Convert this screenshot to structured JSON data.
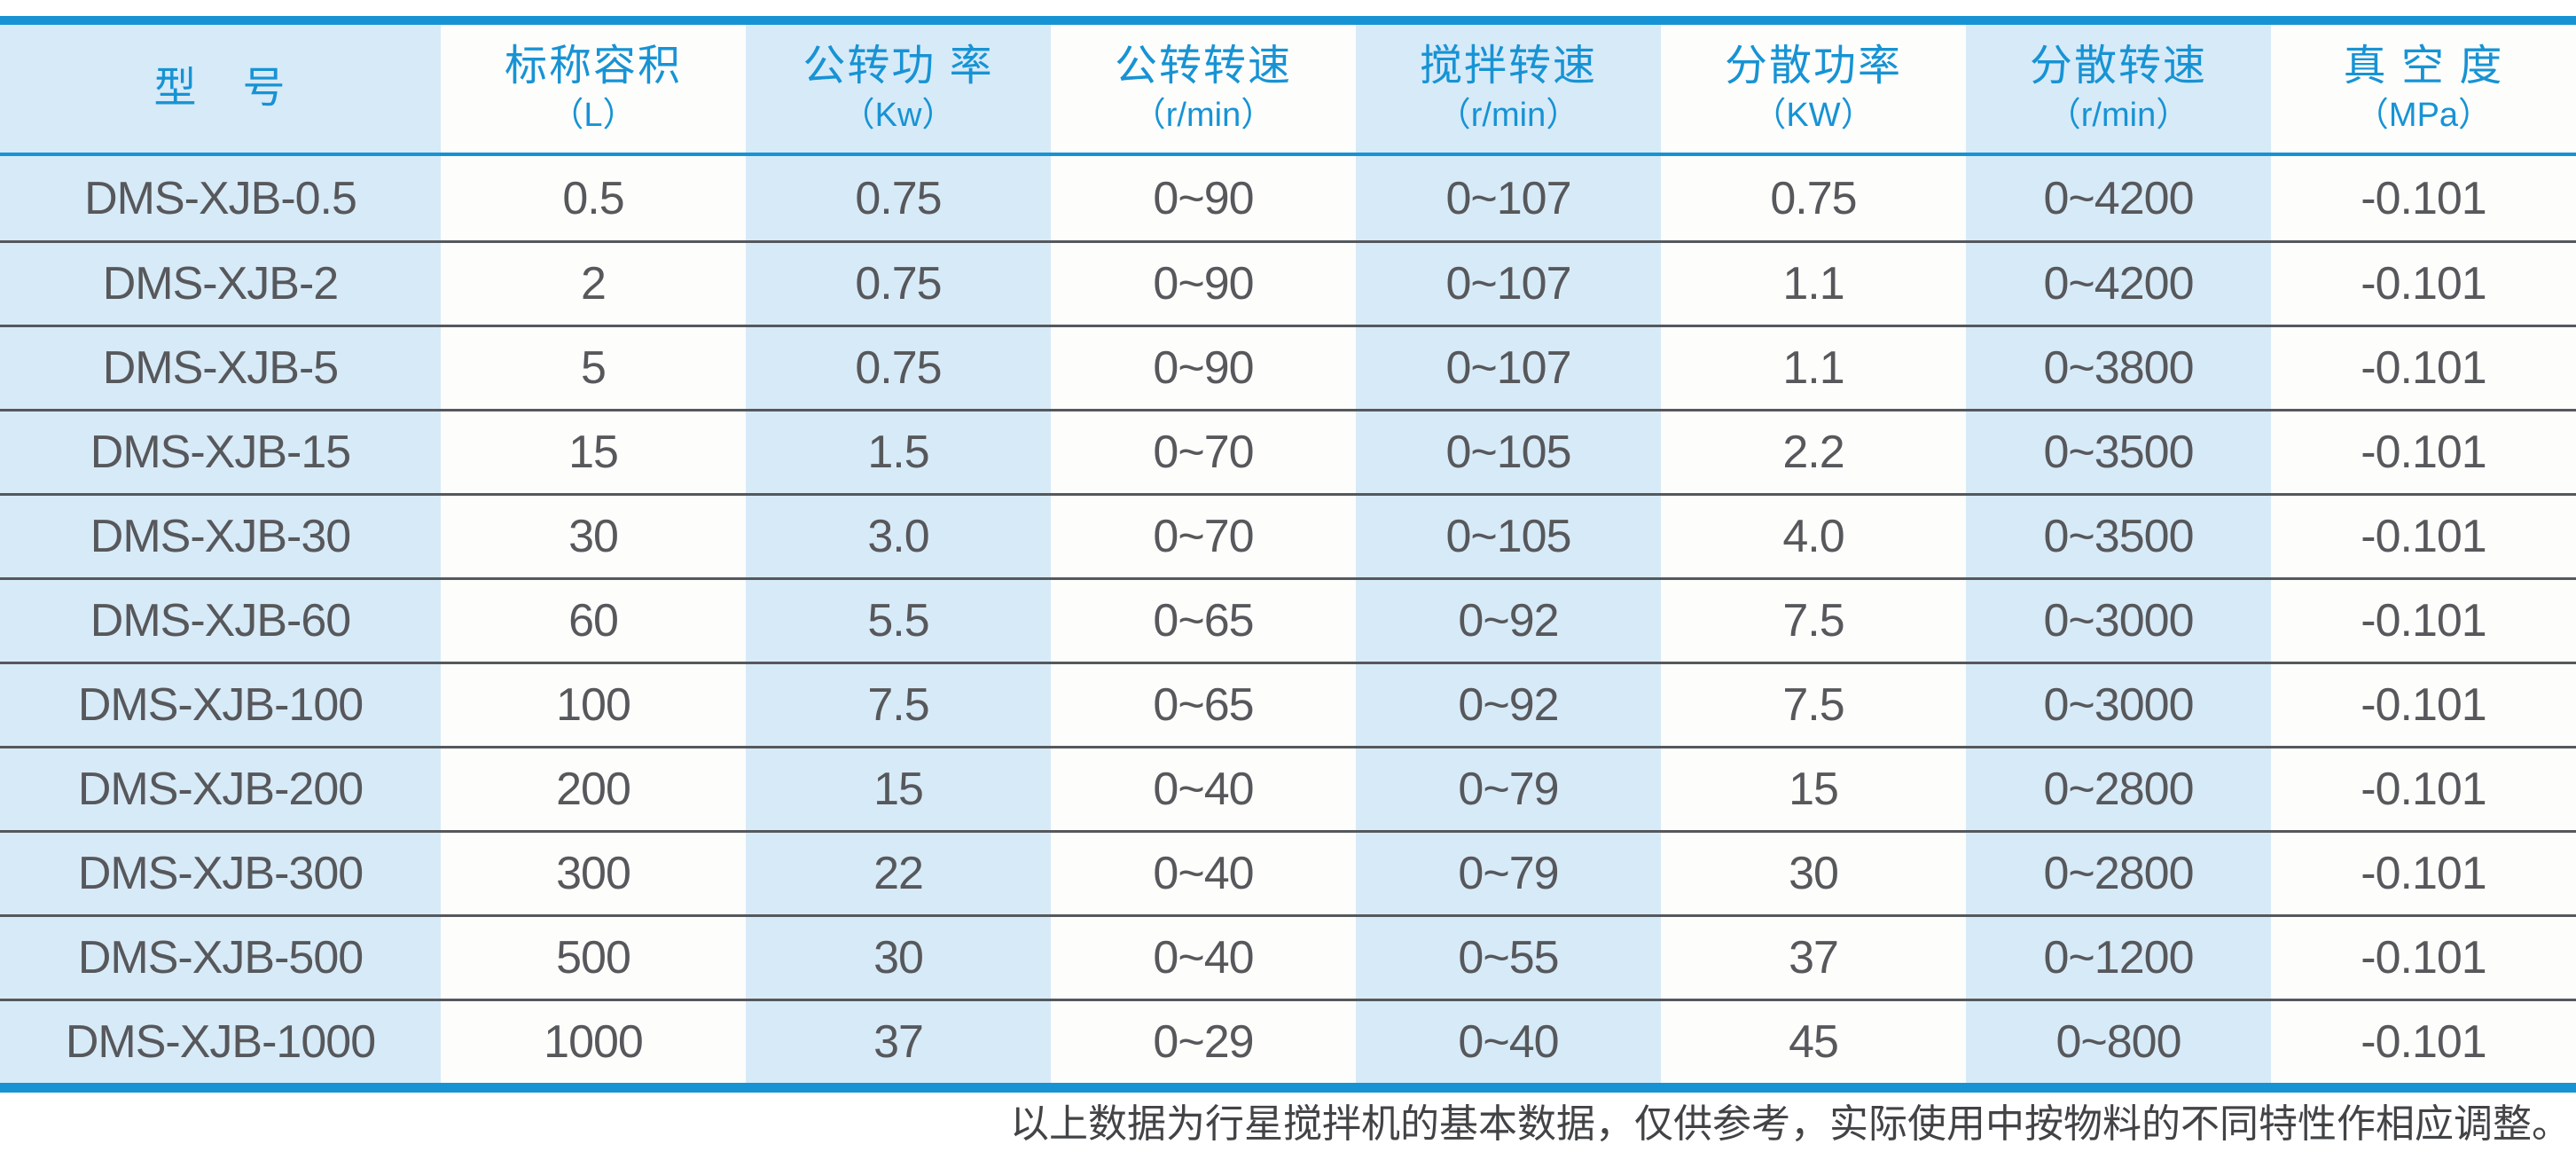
{
  "colors": {
    "accent": "#1793d4",
    "light_cell": "#d7eaf8",
    "data_text": "#57585b",
    "row_line": "#55585c"
  },
  "table": {
    "headers": [
      {
        "title": "型　号",
        "unit": ""
      },
      {
        "title": "标称容积",
        "unit": "（L）"
      },
      {
        "title": "公转功 率",
        "unit": "（Kw）"
      },
      {
        "title": "公转转速",
        "unit": "（r/min）"
      },
      {
        "title": "搅拌转速",
        "unit": "（r/min）"
      },
      {
        "title": "分散功率",
        "unit": "（KW）"
      },
      {
        "title": "分散转速",
        "unit": "（r/min）"
      },
      {
        "title": "真 空 度",
        "unit": "（MPa）"
      }
    ],
    "rows": [
      [
        "DMS-XJB-0.5",
        "0.5",
        "0.75",
        "0~90",
        "0~107",
        "0.75",
        "0~4200",
        "-0.101"
      ],
      [
        "DMS-XJB-2",
        "2",
        "0.75",
        "0~90",
        "0~107",
        "1.1",
        "0~4200",
        "-0.101"
      ],
      [
        "DMS-XJB-5",
        "5",
        "0.75",
        "0~90",
        "0~107",
        "1.1",
        "0~3800",
        "-0.101"
      ],
      [
        "DMS-XJB-15",
        "15",
        "1.5",
        "0~70",
        "0~105",
        "2.2",
        "0~3500",
        "-0.101"
      ],
      [
        "DMS-XJB-30",
        "30",
        "3.0",
        "0~70",
        "0~105",
        "4.0",
        "0~3500",
        "-0.101"
      ],
      [
        "DMS-XJB-60",
        "60",
        "5.5",
        "0~65",
        "0~92",
        "7.5",
        "0~3000",
        "-0.101"
      ],
      [
        "DMS-XJB-100",
        "100",
        "7.5",
        "0~65",
        "0~92",
        "7.5",
        "0~3000",
        "-0.101"
      ],
      [
        "DMS-XJB-200",
        "200",
        "15",
        "0~40",
        "0~79",
        "15",
        "0~2800",
        "-0.101"
      ],
      [
        "DMS-XJB-300",
        "300",
        "22",
        "0~40",
        "0~79",
        "30",
        "0~2800",
        "-0.101"
      ],
      [
        "DMS-XJB-500",
        "500",
        "30",
        "0~40",
        "0~55",
        "37",
        "0~1200",
        "-0.101"
      ],
      [
        "DMS-XJB-1000",
        "1000",
        "37",
        "0~29",
        "0~40",
        "45",
        "0~800",
        "-0.101"
      ]
    ]
  },
  "footer_note": "以上数据为行星搅拌机的基本数据，仅供参考，实际使用中按物料的不同特性作相应调整。"
}
